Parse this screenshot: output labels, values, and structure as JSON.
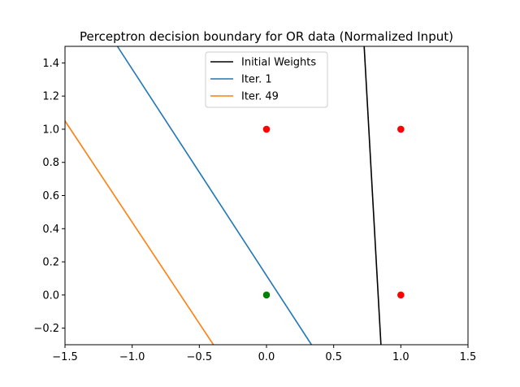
{
  "chart_data": {
    "type": "line",
    "title": "Perceptron decision boundary for OR data (Normalized Input)",
    "xlabel": "",
    "ylabel": "",
    "xlim": [
      -1.5,
      1.5
    ],
    "ylim": [
      -0.3,
      1.5
    ],
    "xticks": [
      -1.5,
      -1.0,
      -0.5,
      0.0,
      0.5,
      1.0,
      1.5
    ],
    "xtick_labels": [
      "−1.5",
      "−1.0",
      "−0.5",
      "0.0",
      "0.5",
      "1.0",
      "1.5"
    ],
    "yticks": [
      -0.2,
      0.0,
      0.2,
      0.4,
      0.6,
      0.8,
      1.0,
      1.2,
      1.4
    ],
    "ytick_labels": [
      "−0.2",
      "0.0",
      "0.2",
      "0.4",
      "0.6",
      "0.8",
      "1.0",
      "1.2",
      "1.4"
    ],
    "grid": false,
    "legend_position": "top-center",
    "series": [
      {
        "name": "Initial Weights",
        "color": "#000000",
        "x": [
          0.727,
          0.852
        ],
        "y": [
          1.5,
          -0.3
        ]
      },
      {
        "name": "Iter. 1",
        "color": "#1f77b4",
        "x": [
          -1.11,
          0.335
        ],
        "y": [
          1.5,
          -0.3
        ]
      },
      {
        "name": "Iter. 49",
        "color": "#ff7f0e",
        "x": [
          -1.5,
          -0.395
        ],
        "y": [
          1.05,
          -0.3
        ]
      }
    ],
    "points": [
      {
        "x": 0,
        "y": 0,
        "color": "#008000"
      },
      {
        "x": 0,
        "y": 1,
        "color": "#ff0000"
      },
      {
        "x": 1,
        "y": 0,
        "color": "#ff0000"
      },
      {
        "x": 1,
        "y": 1,
        "color": "#ff0000"
      }
    ]
  }
}
